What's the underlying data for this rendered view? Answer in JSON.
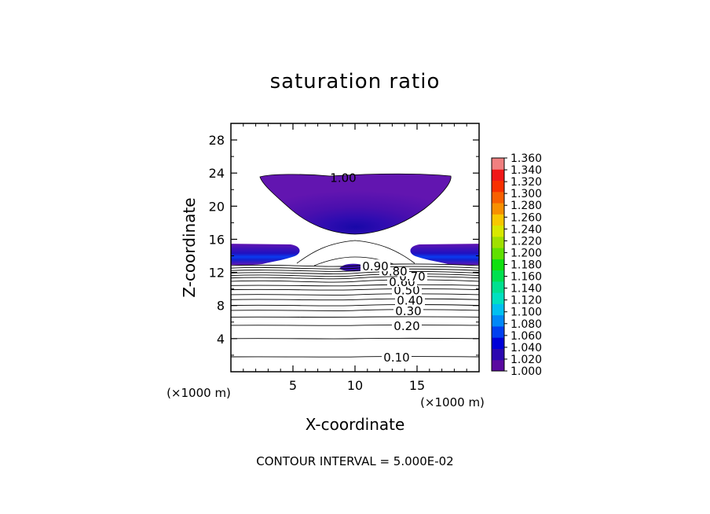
{
  "chart_data": {
    "type": "contour",
    "title": "saturation ratio",
    "xlabel": "X-coordinate",
    "ylabel": "Z-coordinate",
    "x_unit": "(×1000 m)",
    "z_unit": "(×1000 m)",
    "xlim": [
      0,
      20
    ],
    "ylim": [
      0,
      30
    ],
    "x_ticks": [
      5,
      10,
      15
    ],
    "y_ticks": [
      4,
      8,
      12,
      16,
      20,
      24,
      28
    ],
    "footnote": "CONTOUR INTERVAL = 5.000E-02",
    "contour_lines": [
      {
        "level": 0.1,
        "label": "0.10",
        "z": 1.8
      },
      {
        "level": 0.15,
        "z": 4.0
      },
      {
        "level": 0.2,
        "label": "0.20",
        "z": 5.6
      },
      {
        "level": 0.25,
        "z": 6.6
      },
      {
        "level": 0.3,
        "label": "0.30",
        "z": 7.4
      },
      {
        "level": 0.35,
        "z": 8.0
      },
      {
        "level": 0.4,
        "label": "0.40",
        "z": 8.7
      },
      {
        "level": 0.45,
        "z": 9.3
      },
      {
        "level": 0.5,
        "label": "0.50",
        "z": 9.9
      },
      {
        "level": 0.55,
        "z": 10.4
      },
      {
        "level": 0.6,
        "label": "0.60",
        "z": 10.9
      },
      {
        "level": 0.65,
        "z": 11.3
      },
      {
        "level": 0.7,
        "label": "0.70",
        "z": 11.6
      },
      {
        "level": 0.75,
        "z": 11.9
      },
      {
        "level": 0.8,
        "label": "0.80",
        "z": 12.2
      },
      {
        "level": 0.85,
        "z": 12.5
      },
      {
        "level": 0.9,
        "label": "0.90",
        "z": 12.8
      },
      {
        "level": 1.0,
        "label": "1.00",
        "z": 23.5
      }
    ],
    "colorbar": {
      "min": 1.0,
      "max": 1.36,
      "step": 0.02,
      "labels": [
        "1.360",
        "1.340",
        "1.320",
        "1.300",
        "1.280",
        "1.260",
        "1.240",
        "1.220",
        "1.200",
        "1.180",
        "1.160",
        "1.140",
        "1.120",
        "1.100",
        "1.080",
        "1.060",
        "1.040",
        "1.020",
        "1.000"
      ],
      "colors": [
        "#5a0aa0",
        "#2c08b0",
        "#0000d8",
        "#0040f0",
        "#0088f8",
        "#00c0f0",
        "#00e0c0",
        "#00e090",
        "#00e050",
        "#10e010",
        "#60e000",
        "#a0e000",
        "#d8e800",
        "#f8c800",
        "#f89000",
        "#f86000",
        "#f83000",
        "#f01818",
        "#f08080"
      ]
    },
    "shaded_regions": [
      {
        "name": "upper-cloud",
        "x_range": [
          2,
          17.5
        ],
        "z_range": [
          16.7,
          23.8
        ],
        "core_max": 1.04,
        "core_x": 10,
        "core_z": 17.5
      },
      {
        "name": "left-band",
        "x_range": [
          0,
          5.5
        ],
        "z_range": [
          13.0,
          15.5
        ],
        "core_max": 1.08
      },
      {
        "name": "right-band",
        "x_range": [
          14.5,
          20
        ],
        "z_range": [
          13.0,
          15.5
        ],
        "core_max": 1.08
      },
      {
        "name": "center-patch",
        "x_range": [
          8.8,
          10.7
        ],
        "z_range": [
          12.6,
          13.4
        ],
        "core_max": 1.02
      }
    ]
  }
}
